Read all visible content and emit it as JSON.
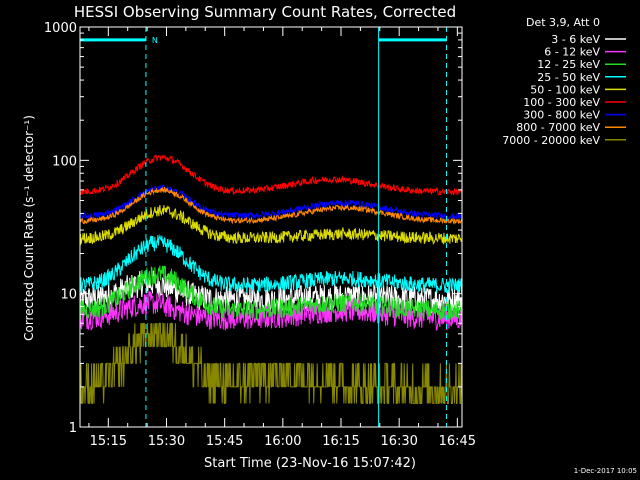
{
  "chart_data": {
    "type": "line",
    "title": "HESSI Observing Summary Count Rates, Corrected",
    "xlabel": "Start Time (23-Nov-16 15:07:42)",
    "ylabel": "Corrected Count Rate (s⁻¹ detector⁻¹)",
    "yscale": "log",
    "ylim": [
      1,
      1000
    ],
    "xlim_minutes": [
      0,
      98.5
    ],
    "xtick_labels": [
      "15:15",
      "15:30",
      "15:45",
      "16:00",
      "16:15",
      "16:30",
      "16:45"
    ],
    "xtick_minutes": [
      7.3,
      22.3,
      37.3,
      52.3,
      67.3,
      82.3,
      97.3
    ],
    "ytick_labels": [
      "1",
      "10",
      "100",
      "1000"
    ],
    "ytick_values": [
      1,
      10,
      100,
      1000
    ],
    "legend_title": "Det 3,9, Att 0",
    "legend_position": "right",
    "series": [
      {
        "name": "3 - 6 keV",
        "color": "#ffffff",
        "baseline": 9.0,
        "peaks": [
          [
            18,
            12
          ],
          [
            68,
            9.5
          ]
        ],
        "noise": 0.2
      },
      {
        "name": "6 - 12 keV",
        "color": "#ff33ff",
        "baseline": 6.5,
        "peaks": [
          [
            18,
            8.5
          ],
          [
            68,
            7.5
          ]
        ],
        "noise": 0.18
      },
      {
        "name": "12 - 25 keV",
        "color": "#22dd22",
        "baseline": 7.5,
        "peaks": [
          [
            20,
            14
          ],
          [
            68,
            8.5
          ]
        ],
        "noise": 0.15
      },
      {
        "name": "25 - 50 keV",
        "color": "#00ffff",
        "baseline": 11.5,
        "peaks": [
          [
            20,
            24
          ],
          [
            68,
            13
          ]
        ],
        "noise": 0.12
      },
      {
        "name": "50 - 100 keV",
        "color": "#dddd00",
        "baseline": 26,
        "peaks": [
          [
            21,
            42
          ],
          [
            68,
            28
          ]
        ],
        "noise": 0.09
      },
      {
        "name": "100 - 300 keV",
        "color": "#ff0000",
        "baseline": 58,
        "peaks": [
          [
            21,
            105
          ],
          [
            65,
            72
          ]
        ],
        "noise": 0.05
      },
      {
        "name": "300 - 800 keV",
        "color": "#0000ff",
        "baseline": 38,
        "peaks": [
          [
            21,
            62
          ],
          [
            68,
            48
          ]
        ],
        "noise": 0.05
      },
      {
        "name": "800 - 7000 keV",
        "color": "#ff8800",
        "baseline": 35,
        "peaks": [
          [
            21,
            60
          ],
          [
            68,
            44
          ]
        ],
        "noise": 0.04
      },
      {
        "name": "7000 - 20000 keV",
        "color": "#888800",
        "baseline": 2.0,
        "peaks": [
          [
            20,
            5.0
          ],
          [
            55,
            2.5
          ]
        ],
        "noise": 0.3
      }
    ],
    "markers": [
      {
        "type": "vline-dashed",
        "minute": 17.0,
        "color": "#00ffff"
      },
      {
        "type": "vline-solid",
        "minute": 77.0,
        "color": "#00ffff"
      },
      {
        "type": "vline-dashed",
        "minute": 94.5,
        "color": "#00ffff"
      }
    ],
    "bars": [
      {
        "from": 0,
        "to": 17.0,
        "y": 800,
        "color": "#00ffff"
      },
      {
        "from": 77.0,
        "to": 94.5,
        "y": 800,
        "color": "#00ffff"
      }
    ],
    "annotation": "N",
    "footer": "1-Dec-2017 10:05"
  }
}
